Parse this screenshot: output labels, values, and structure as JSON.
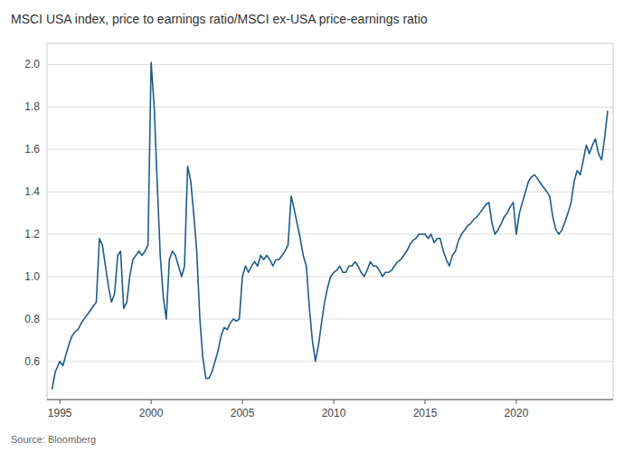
{
  "chart_data": {
    "type": "line",
    "title": "MSCI USA index, price to earnings ratio/MSCI ex-USA price-earnings ratio",
    "source": "Source: Bloomberg",
    "color": "#1f5c8b",
    "grid": true,
    "xlim": [
      1994.3,
      2025.3
    ],
    "xticks": [
      1995,
      2000,
      2005,
      2010,
      2015,
      2020
    ],
    "ylim": [
      0.42,
      2.1
    ],
    "yticks": [
      0.6,
      0.8,
      {
        "value": 1.0,
        "label": "1.0"
      },
      1.2,
      1.4,
      1.6,
      1.8,
      {
        "value": 2.0,
        "label": "2.0"
      }
    ],
    "x": [
      1994.58,
      1994.75,
      1995.0,
      1995.17,
      1995.33,
      1995.5,
      1995.67,
      1995.83,
      1996.0,
      1996.17,
      1996.33,
      1996.5,
      1996.67,
      1996.83,
      1997.0,
      1997.17,
      1997.33,
      1997.5,
      1997.67,
      1997.83,
      1998.0,
      1998.17,
      1998.33,
      1998.5,
      1998.67,
      1998.83,
      1999.0,
      1999.17,
      1999.33,
      1999.5,
      1999.67,
      1999.83,
      2000.0,
      2000.17,
      2000.33,
      2000.5,
      2000.67,
      2000.83,
      2001.0,
      2001.17,
      2001.33,
      2001.5,
      2001.67,
      2001.83,
      2002.0,
      2002.17,
      2002.33,
      2002.5,
      2002.67,
      2002.83,
      2003.0,
      2003.17,
      2003.33,
      2003.5,
      2003.67,
      2003.83,
      2004.0,
      2004.17,
      2004.33,
      2004.5,
      2004.67,
      2004.83,
      2005.0,
      2005.17,
      2005.33,
      2005.5,
      2005.67,
      2005.83,
      2006.0,
      2006.17,
      2006.33,
      2006.5,
      2006.67,
      2006.83,
      2007.0,
      2007.17,
      2007.33,
      2007.5,
      2007.67,
      2007.83,
      2008.0,
      2008.17,
      2008.33,
      2008.5,
      2008.67,
      2008.83,
      2009.0,
      2009.17,
      2009.33,
      2009.5,
      2009.67,
      2009.83,
      2010.0,
      2010.17,
      2010.33,
      2010.5,
      2010.67,
      2010.83,
      2011.0,
      2011.17,
      2011.33,
      2011.5,
      2011.67,
      2011.83,
      2012.0,
      2012.17,
      2012.33,
      2012.5,
      2012.67,
      2012.83,
      2013.0,
      2013.17,
      2013.33,
      2013.5,
      2013.67,
      2013.83,
      2014.0,
      2014.17,
      2014.33,
      2014.5,
      2014.67,
      2014.83,
      2015.0,
      2015.17,
      2015.33,
      2015.5,
      2015.67,
      2015.83,
      2016.0,
      2016.17,
      2016.33,
      2016.5,
      2016.67,
      2016.83,
      2017.0,
      2017.17,
      2017.33,
      2017.5,
      2017.67,
      2017.83,
      2018.0,
      2018.17,
      2018.33,
      2018.5,
      2018.67,
      2018.83,
      2019.0,
      2019.17,
      2019.33,
      2019.5,
      2019.67,
      2019.83,
      2020.0,
      2020.17,
      2020.33,
      2020.5,
      2020.67,
      2020.83,
      2021.0,
      2021.17,
      2021.33,
      2021.5,
      2021.67,
      2021.83,
      2022.0,
      2022.17,
      2022.33,
      2022.5,
      2022.67,
      2022.83,
      2023.0,
      2023.17,
      2023.33,
      2023.5,
      2023.67,
      2023.83,
      2024.0,
      2024.17,
      2024.33,
      2024.5,
      2024.67,
      2024.83,
      2025.0
    ],
    "values": [
      0.47,
      0.55,
      0.6,
      0.58,
      0.63,
      0.68,
      0.72,
      0.74,
      0.75,
      0.78,
      0.8,
      0.82,
      0.84,
      0.86,
      0.88,
      1.18,
      1.15,
      1.05,
      0.95,
      0.88,
      0.92,
      1.1,
      1.12,
      0.85,
      0.88,
      1.0,
      1.08,
      1.1,
      1.12,
      1.1,
      1.12,
      1.15,
      2.01,
      1.8,
      1.45,
      1.1,
      0.9,
      0.8,
      1.08,
      1.12,
      1.1,
      1.05,
      1.0,
      1.05,
      1.52,
      1.45,
      1.3,
      1.12,
      0.8,
      0.62,
      0.52,
      0.52,
      0.55,
      0.6,
      0.65,
      0.72,
      0.76,
      0.75,
      0.78,
      0.8,
      0.79,
      0.8,
      1.0,
      1.05,
      1.02,
      1.05,
      1.07,
      1.05,
      1.1,
      1.08,
      1.1,
      1.08,
      1.05,
      1.08,
      1.08,
      1.1,
      1.12,
      1.15,
      1.38,
      1.32,
      1.25,
      1.18,
      1.1,
      1.05,
      0.85,
      0.7,
      0.6,
      0.68,
      0.78,
      0.88,
      0.95,
      1.0,
      1.02,
      1.03,
      1.05,
      1.02,
      1.02,
      1.05,
      1.05,
      1.07,
      1.05,
      1.02,
      1.0,
      1.03,
      1.07,
      1.05,
      1.05,
      1.03,
      1.0,
      1.02,
      1.02,
      1.03,
      1.05,
      1.07,
      1.08,
      1.1,
      1.12,
      1.15,
      1.17,
      1.18,
      1.2,
      1.2,
      1.2,
      1.18,
      1.2,
      1.16,
      1.18,
      1.18,
      1.12,
      1.08,
      1.05,
      1.1,
      1.12,
      1.17,
      1.2,
      1.22,
      1.24,
      1.25,
      1.27,
      1.28,
      1.3,
      1.32,
      1.34,
      1.35,
      1.25,
      1.2,
      1.22,
      1.25,
      1.28,
      1.3,
      1.33,
      1.35,
      1.2,
      1.3,
      1.35,
      1.4,
      1.45,
      1.47,
      1.48,
      1.46,
      1.44,
      1.42,
      1.4,
      1.38,
      1.28,
      1.22,
      1.2,
      1.22,
      1.26,
      1.3,
      1.35,
      1.45,
      1.5,
      1.48,
      1.55,
      1.62,
      1.58,
      1.62,
      1.65,
      1.58,
      1.55,
      1.65,
      1.78
    ]
  }
}
